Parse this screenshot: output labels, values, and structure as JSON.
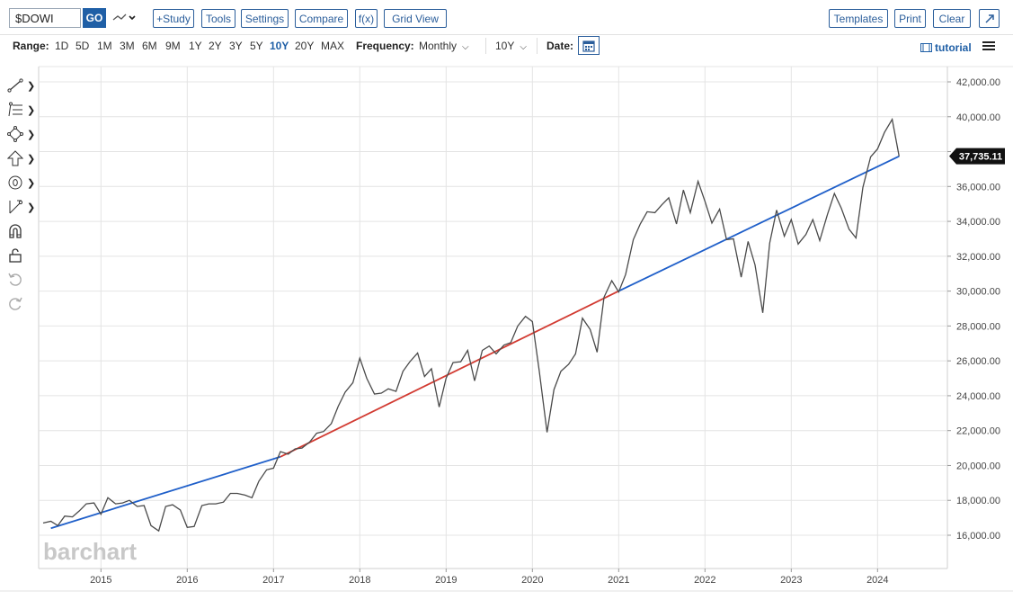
{
  "toolbar": {
    "symbol": "$DOWI",
    "go_label": "GO",
    "buttons": [
      "+Study",
      "Tools",
      "Settings",
      "Compare",
      "f(x)",
      "Grid View"
    ],
    "right_buttons": [
      "Templates",
      "Print",
      "Clear"
    ]
  },
  "rangebar": {
    "range_label": "Range:",
    "ranges": [
      "1D",
      "5D",
      "1M",
      "3M",
      "6M",
      "9M",
      "1Y",
      "2Y",
      "3Y",
      "5Y",
      "10Y",
      "20Y",
      "MAX"
    ],
    "active_range": "10Y",
    "frequency_label": "Frequency:",
    "frequency_value": "Monthly",
    "period_value": "10Y",
    "date_label": "Date:",
    "tutorial_label": "tutorial"
  },
  "colors": {
    "price_line": "#4a4a4a",
    "trend_blue": "#1f5fc9",
    "trend_red": "#d23b32",
    "accent": "#1f5fa6"
  },
  "tools": [
    "line-tool-icon",
    "fib-tool-icon",
    "shape-tool-icon",
    "arrow-tool-icon",
    "annotation-tool-icon",
    "measure-tool-icon",
    "magnet-icon",
    "lock-icon",
    "undo-icon",
    "redo-icon"
  ],
  "chart_data": {
    "type": "line",
    "watermark": "barchart",
    "last_value_label": "37,735.11",
    "x_labels": [
      "2015",
      "2016",
      "2017",
      "2018",
      "2019",
      "2020",
      "2021",
      "2022",
      "2023",
      "2024"
    ],
    "y_labels": [
      "16,000.00",
      "18,000.00",
      "20,000.00",
      "22,000.00",
      "24,000.00",
      "26,000.00",
      "28,000.00",
      "30,000.00",
      "32,000.00",
      "34,000.00",
      "36,000.00",
      "38,000.00",
      "40,000.00",
      "42,000.00"
    ],
    "ylim": [
      15000,
      43000
    ],
    "x_range": [
      2014.33,
      2024.58
    ],
    "series": [
      {
        "x": [
          2014.33,
          2014.42,
          2014.5,
          2014.58,
          2014.67,
          2014.75,
          2014.83,
          2014.92,
          2015.0,
          2015.08,
          2015.17,
          2015.25,
          2015.33,
          2015.42,
          2015.5,
          2015.58,
          2015.67,
          2015.75,
          2015.83,
          2015.92,
          2016.0,
          2016.08,
          2016.17,
          2016.25,
          2016.33,
          2016.42,
          2016.5,
          2016.58,
          2016.67,
          2016.75,
          2016.83,
          2016.92,
          2017.0,
          2017.08,
          2017.17,
          2017.25,
          2017.33,
          2017.42,
          2017.5,
          2017.58,
          2017.67,
          2017.75,
          2017.83,
          2017.92,
          2018.0,
          2018.08,
          2018.17,
          2018.25,
          2018.33,
          2018.42,
          2018.5,
          2018.58,
          2018.67,
          2018.75,
          2018.83,
          2018.92,
          2019.0,
          2019.08,
          2019.17,
          2019.25,
          2019.33,
          2019.42,
          2019.5,
          2019.58,
          2019.67,
          2019.75,
          2019.83,
          2019.92,
          2020.0,
          2020.08,
          2020.17,
          2020.25,
          2020.33,
          2020.42,
          2020.5,
          2020.58,
          2020.67,
          2020.75,
          2020.83,
          2020.92,
          2021.0,
          2021.08,
          2021.17,
          2021.25,
          2021.33,
          2021.42,
          2021.5,
          2021.58,
          2021.67,
          2021.75,
          2021.83,
          2021.92,
          2022.0,
          2022.08,
          2022.17,
          2022.25,
          2022.33,
          2022.42,
          2022.5,
          2022.58,
          2022.67,
          2022.75,
          2022.83,
          2022.92,
          2023.0,
          2023.08,
          2023.17,
          2023.25,
          2023.33,
          2023.42,
          2023.5,
          2023.58,
          2023.67,
          2023.75,
          2023.83,
          2023.92,
          2024.0,
          2024.08,
          2024.17,
          2024.25
        ],
        "values": [
          16700,
          16800,
          16550,
          17100,
          17050,
          17400,
          17800,
          17850,
          17200,
          18150,
          17800,
          17850,
          18000,
          17650,
          17700,
          16550,
          16250,
          17650,
          17750,
          17450,
          16450,
          16500,
          17700,
          17800,
          17800,
          17900,
          18400,
          18400,
          18300,
          18150,
          19100,
          19750,
          19850,
          20800,
          20650,
          20950,
          21000,
          21350,
          21850,
          21950,
          22400,
          23400,
          24200,
          24750,
          26150,
          25000,
          24100,
          24150,
          24400,
          24250,
          25400,
          25950,
          26450,
          25100,
          25550,
          23350,
          25000,
          25900,
          25950,
          26600,
          24850,
          26600,
          26850,
          26400,
          26900,
          27050,
          28000,
          28550,
          28250,
          25400,
          21900,
          24350,
          25400,
          25800,
          26400,
          28450,
          27800,
          26500,
          29650,
          30600,
          29950,
          30950,
          32950,
          33850,
          34550,
          34500,
          34950,
          35350,
          33850,
          35800,
          34500,
          36300,
          35150,
          33900,
          34700,
          32950,
          33000,
          30800,
          32850,
          31500,
          28750,
          32750,
          34650,
          33150,
          34100,
          32700,
          33250,
          34100,
          32900,
          34400,
          35600,
          34750,
          33550,
          33050,
          35950,
          37700,
          38150,
          39100,
          39850,
          37735
        ]
      }
    ],
    "trendlines": [
      {
        "color": "blue",
        "x": [
          2014.42,
          2017.08
        ],
        "values": [
          16400,
          20500
        ]
      },
      {
        "color": "red",
        "x": [
          2017.08,
          2021.0
        ],
        "values": [
          20500,
          30000
        ]
      },
      {
        "color": "blue",
        "x": [
          2021.0,
          2024.25
        ],
        "values": [
          30000,
          37735
        ]
      }
    ]
  }
}
